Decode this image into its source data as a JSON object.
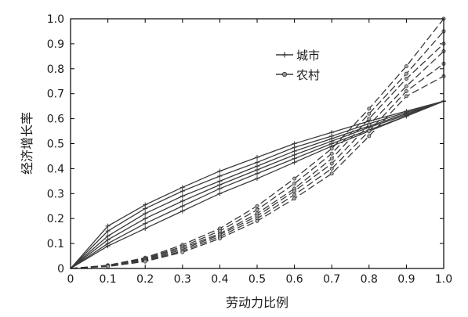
{
  "chart_data": {
    "type": "line",
    "xlabel": "劳动力比例",
    "ylabel": "经济增长率",
    "xlim": [
      0,
      1
    ],
    "ylim": [
      0,
      1
    ],
    "x_ticks": [
      "0",
      "0.1",
      "0.2",
      "0.3",
      "0.4",
      "0.5",
      "0.6",
      "0.7",
      "0.8",
      "0.9",
      "1.0"
    ],
    "y_ticks": [
      "0",
      "0.1",
      "0.2",
      "0.3",
      "0.4",
      "0.5",
      "0.6",
      "0.7",
      "0.8",
      "0.9",
      "1.0"
    ],
    "legend": {
      "placement": "upper-center",
      "entries": [
        {
          "label": "城市",
          "marker": "plus",
          "style": "solid"
        },
        {
          "label": "农村",
          "marker": "circle",
          "style": "dashed"
        }
      ]
    },
    "x": [
      0,
      0.1,
      0.2,
      0.3,
      0.4,
      0.5,
      0.6,
      0.7,
      0.8,
      0.9,
      1.0
    ],
    "series": [
      {
        "group": "城市",
        "values": [
          0,
          0.17,
          0.255,
          0.325,
          0.39,
          0.445,
          0.5,
          0.545,
          0.59,
          0.63,
          0.67
        ]
      },
      {
        "group": "城市",
        "values": [
          0,
          0.15,
          0.24,
          0.31,
          0.37,
          0.425,
          0.485,
          0.53,
          0.58,
          0.625,
          0.67
        ]
      },
      {
        "group": "城市",
        "values": [
          0,
          0.13,
          0.22,
          0.29,
          0.35,
          0.41,
          0.47,
          0.52,
          0.57,
          0.62,
          0.67
        ]
      },
      {
        "group": "城市",
        "values": [
          0,
          0.115,
          0.2,
          0.27,
          0.335,
          0.395,
          0.455,
          0.51,
          0.565,
          0.615,
          0.67
        ]
      },
      {
        "group": "城市",
        "values": [
          0,
          0.1,
          0.18,
          0.25,
          0.32,
          0.38,
          0.44,
          0.5,
          0.555,
          0.61,
          0.67
        ]
      },
      {
        "group": "城市",
        "values": [
          0,
          0.09,
          0.16,
          0.23,
          0.3,
          0.36,
          0.425,
          0.49,
          0.55,
          0.61,
          0.67
        ]
      },
      {
        "group": "农村",
        "values": [
          0,
          0.013,
          0.043,
          0.095,
          0.16,
          0.25,
          0.36,
          0.48,
          0.64,
          0.81,
          1.0
        ]
      },
      {
        "group": "农村",
        "values": [
          0,
          0.012,
          0.04,
          0.088,
          0.15,
          0.235,
          0.34,
          0.46,
          0.62,
          0.78,
          0.95
        ]
      },
      {
        "group": "农村",
        "values": [
          0,
          0.011,
          0.037,
          0.082,
          0.14,
          0.22,
          0.32,
          0.44,
          0.6,
          0.76,
          0.9
        ]
      },
      {
        "group": "农村",
        "values": [
          0,
          0.01,
          0.034,
          0.076,
          0.135,
          0.21,
          0.31,
          0.42,
          0.575,
          0.73,
          0.87
        ]
      },
      {
        "group": "农村",
        "values": [
          0,
          0.009,
          0.031,
          0.07,
          0.128,
          0.2,
          0.295,
          0.4,
          0.55,
          0.71,
          0.82
        ]
      },
      {
        "group": "农村",
        "values": [
          0,
          0.008,
          0.028,
          0.065,
          0.12,
          0.19,
          0.28,
          0.38,
          0.53,
          0.69,
          0.77
        ]
      }
    ],
    "colors": {
      "line": "#3a3a3a",
      "axis": "#000000",
      "background": "#ffffff"
    }
  }
}
